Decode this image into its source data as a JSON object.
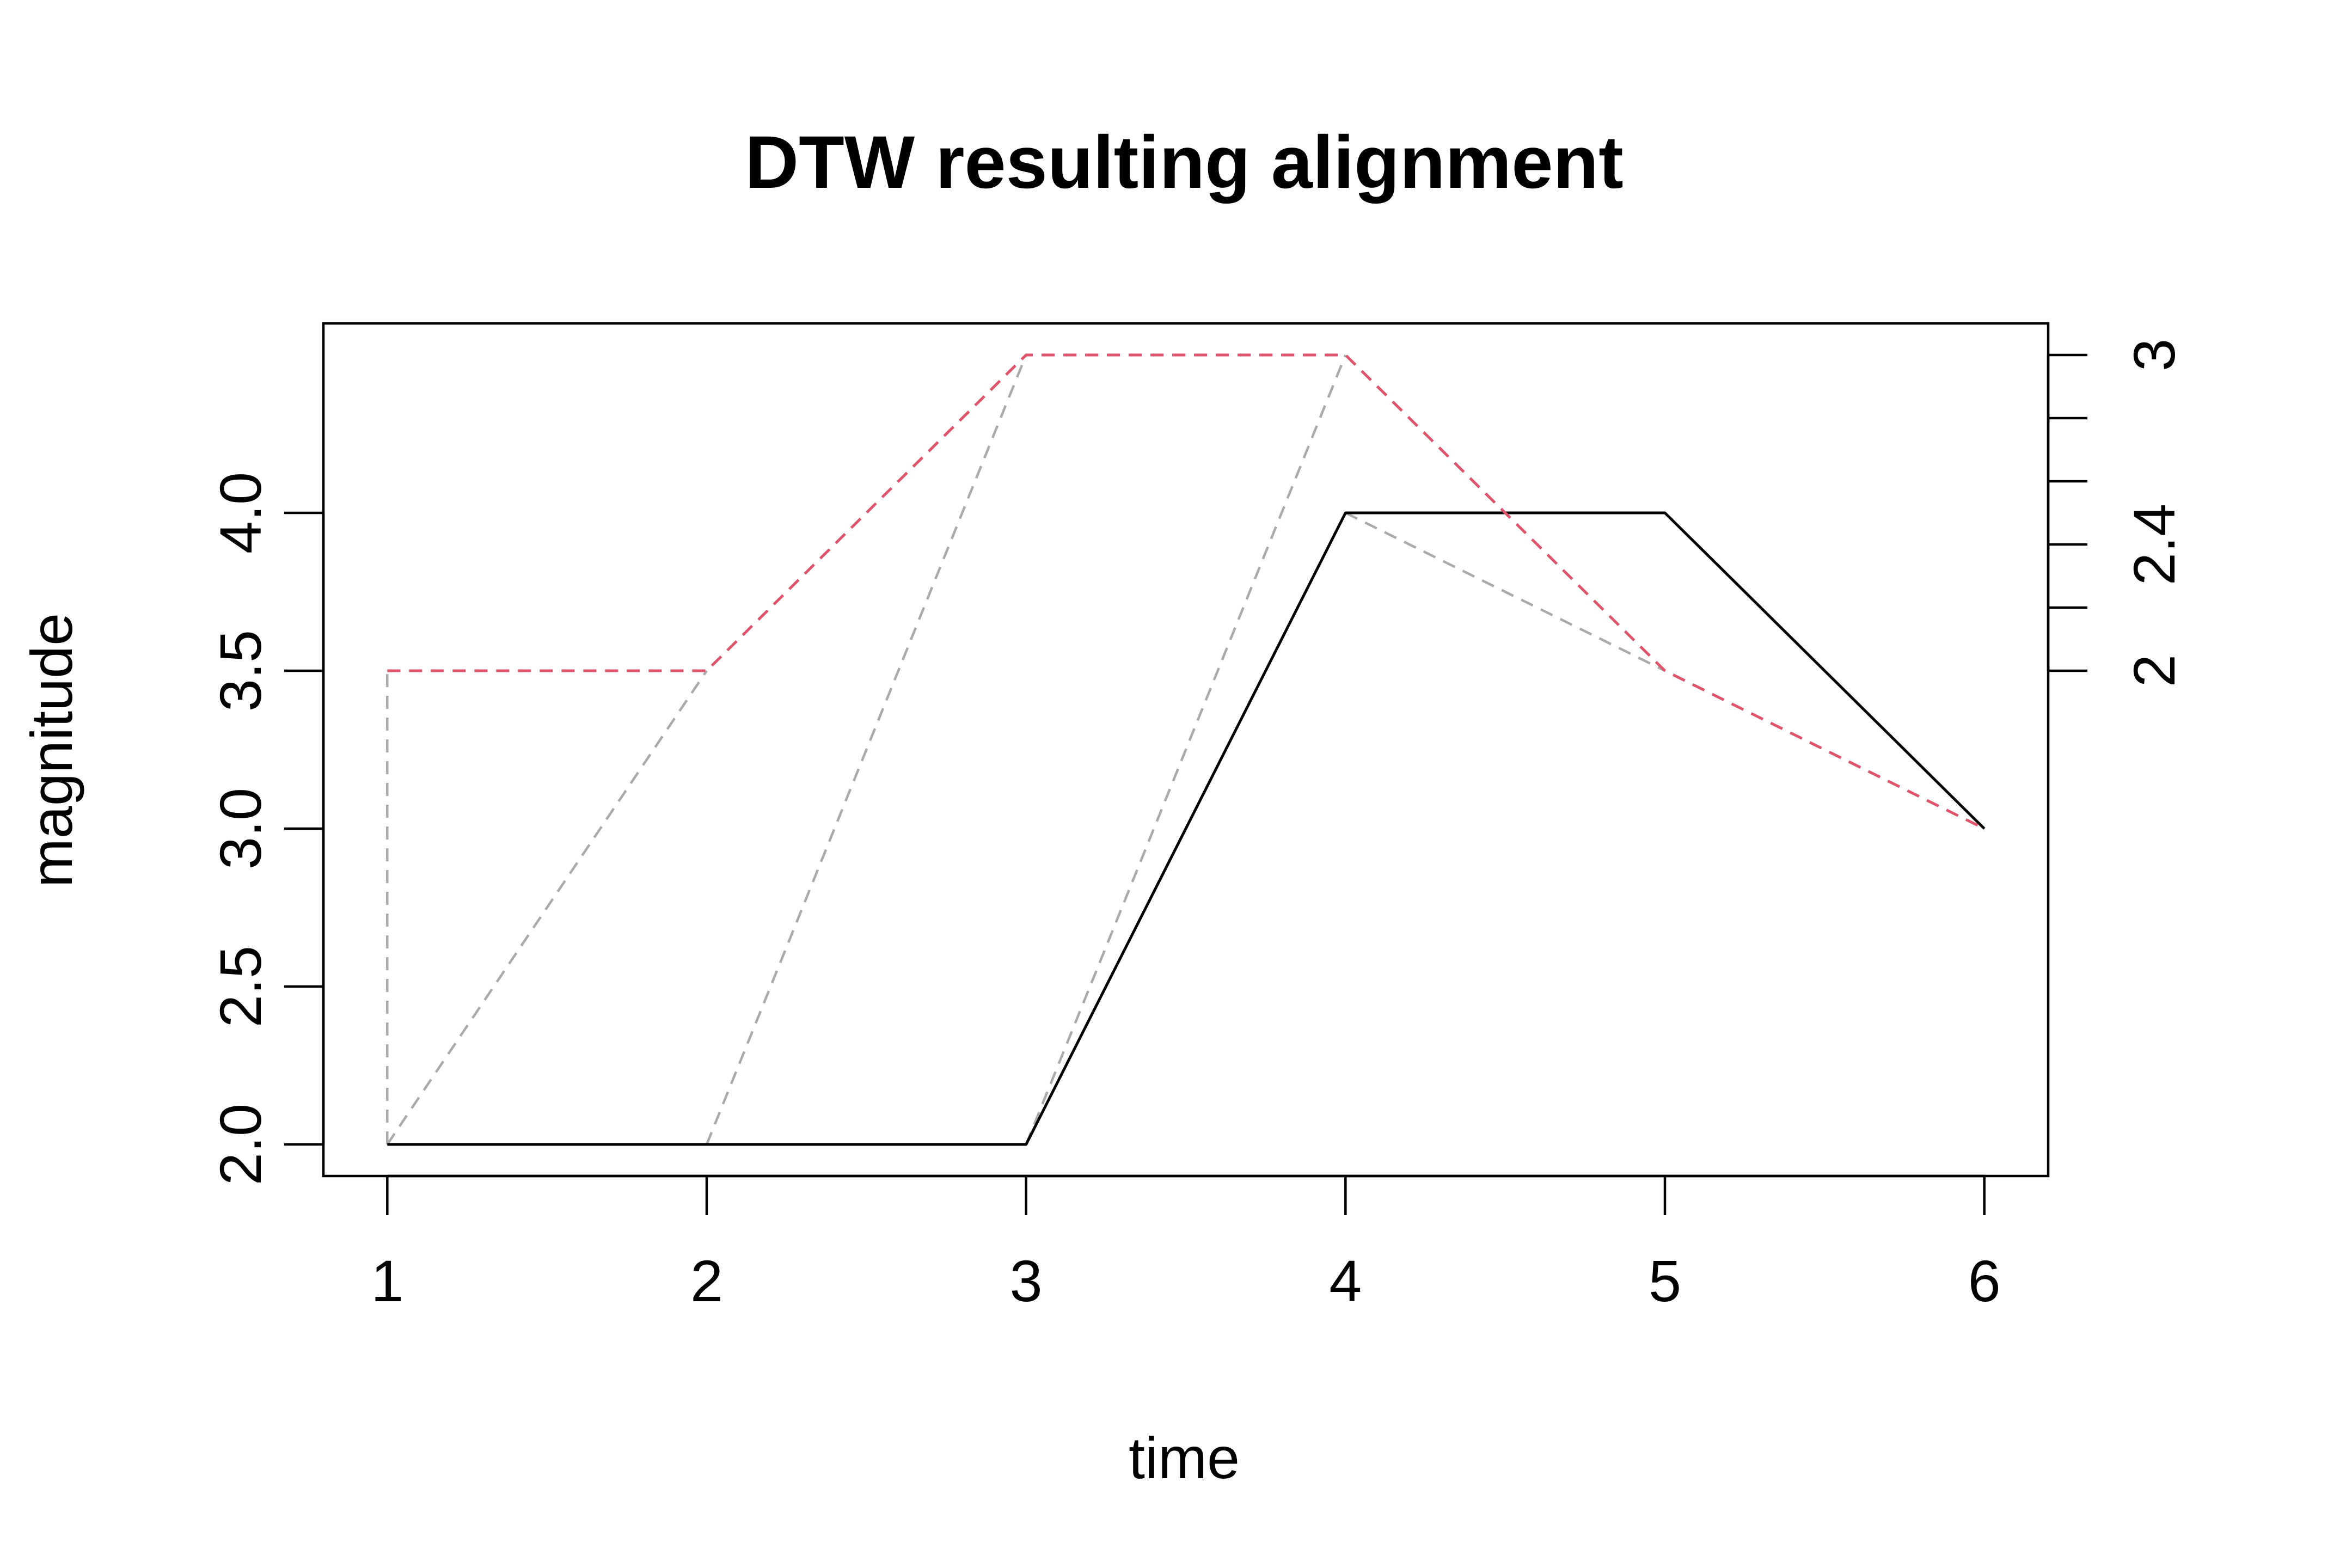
{
  "chart_data": {
    "type": "line",
    "title": "DTW resulting alignment",
    "xlabel": "time",
    "ylabel": "magnitude",
    "x": [
      1,
      2,
      3,
      4,
      5,
      6
    ],
    "xlim": [
      0.8,
      6.2
    ],
    "ylim": [
      1.9,
      4.6
    ],
    "x_ticks": [
      1,
      2,
      3,
      4,
      5,
      6
    ],
    "y_ticks": [
      2.0,
      2.5,
      3.0,
      3.5,
      4.0
    ],
    "y_tick_labels": [
      "2.0",
      "2.5",
      "3.0",
      "3.5",
      "4.0"
    ],
    "right_axis": {
      "ticks_left_scale": [
        3.5,
        3.7,
        3.9,
        4.1,
        4.3,
        4.5
      ],
      "labels": [
        {
          "value": 3.5,
          "text": "2"
        },
        {
          "value": 3.9,
          "text": "2.4"
        },
        {
          "value": 4.5,
          "text": "3"
        }
      ]
    },
    "series": [
      {
        "values": [
          2,
          2,
          2,
          4,
          4,
          3
        ],
        "color": "#000000",
        "style": "solid"
      },
      {
        "values": [
          3.5,
          3.5,
          4.5,
          4.5,
          3.5,
          3
        ],
        "color": "#DF536B",
        "style": "dashed"
      }
    ],
    "alignment": {
      "color": "#AAAAAA",
      "style": "dashed",
      "pairs": [
        [
          1,
          1
        ],
        [
          1,
          2
        ],
        [
          2,
          3
        ],
        [
          3,
          4
        ],
        [
          4,
          5
        ],
        [
          5,
          6
        ],
        [
          6,
          6
        ]
      ]
    },
    "grid": false,
    "legend": "none"
  }
}
